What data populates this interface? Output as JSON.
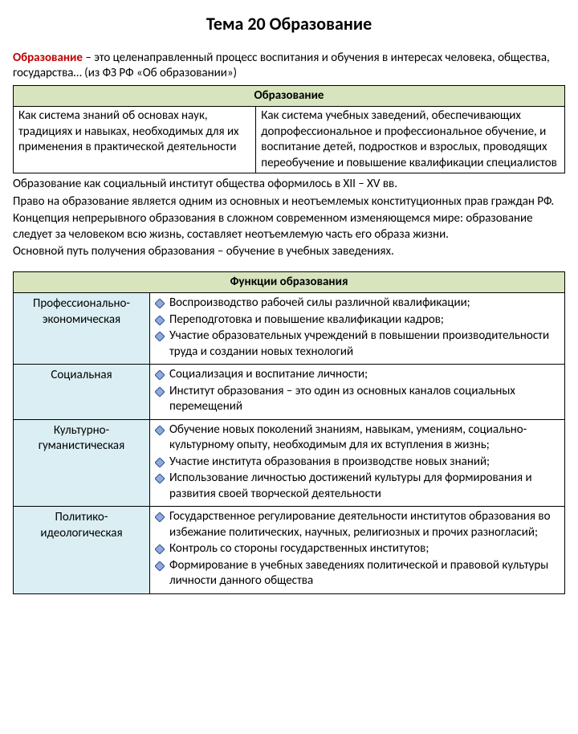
{
  "title": "Тема 20 Образование",
  "definition": {
    "term": "Образование",
    "text": " – это целенаправленный процесс воспитания и обучения в интересах человека, общества, государства… (из ФЗ РФ «Об образовании»)"
  },
  "table1": {
    "header": "Образование",
    "left": "Как система знаний об основах наук, традициях и навыках, необходимых для их применения в практической деятельности",
    "right": "Как система учебных заведений, обеспечивающих допрофессиональное и профессиональное обучение, и воспитание детей, подростков и взрослых, проводящих переобучение и повышение квалификации специалистов"
  },
  "paragraphs": [
    "Образование как социальный институт общества оформилось в XII – XV вв.",
    "Право на образование является одним из основных и неотъемлемых конституционных прав граждан РФ.",
    "Концепция непрерывного образования в сложном современном изменяющемся мире: образование следует за человеком всю жизнь, составляет неотъемлемую часть его образа жизни.",
    "Основной путь получения образования – обучение в учебных заведениях."
  ],
  "table2": {
    "header": "Функции образования",
    "rows": [
      {
        "name_l1": "Профессионально-",
        "name_l2": "экономическая",
        "bullets": [
          "Воспроизводство рабочей силы различной квалификации;",
          "Переподготовка и повышение квалификации кадров;",
          "Участие образовательных учреждений в повышении производительности труда и создании новых технологий"
        ]
      },
      {
        "name_l1": "Социальная",
        "name_l2": "",
        "bullets": [
          "Социализация и воспитание личности;",
          "Институт образования – это один из основных каналов социальных перемещений"
        ]
      },
      {
        "name_l1": "Культурно-",
        "name_l2": "гуманистическая",
        "bullets": [
          "Обучение новых поколений знаниям, навыкам, умениям, социально-культурному опыту, необходимым для их вступления в жизнь;",
          "Участие института образования в производстве новых знаний;",
          "Использование личностью достижений культуры для формирования и развития своей творческой деятельности"
        ]
      },
      {
        "name_l1": "Политико-",
        "name_l2": "идеологическая",
        "bullets": [
          "Государственное регулирование деятельности институтов образования во избежание политических, научных, религиозных и прочих разногласий;",
          "Контроль со стороны государственных институтов;",
          "Формирование в учебных заведениях политической и правовой культуры личности данного общества"
        ]
      }
    ]
  },
  "colors": {
    "term": "#c00000",
    "green_header": "#d7e4bd",
    "blue_cell": "#daeef3",
    "diamond_fill": "#8faadc",
    "diamond_stroke": "#2f528f"
  }
}
